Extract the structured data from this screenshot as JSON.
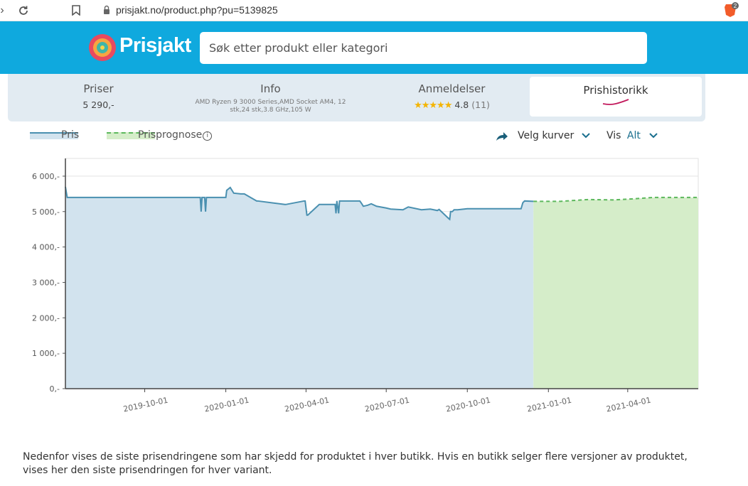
{
  "browser": {
    "url": "prisjakt.no/product.php?pu=5139825",
    "extension_badge": "2"
  },
  "header": {
    "logo_text": "Prisjakt",
    "search_placeholder": "Søk etter produkt eller kategori"
  },
  "tabs": [
    {
      "title": "Priser",
      "value": "5 290,-"
    },
    {
      "title": "Info",
      "value": "AMD Ryzen 9 3000 Series,AMD Socket AM4, 12 stk,24 stk,3.8 GHz,105 W"
    },
    {
      "title": "Anmeldelser",
      "stars": "★★★★★",
      "rating": "4.8",
      "count": "(11)"
    },
    {
      "title": "Prishistorikk"
    }
  ],
  "legend": {
    "pris": "Pris",
    "prognose": "Prisprognose",
    "velg_kurver": "Velg kurver",
    "vis_label": "Vis",
    "vis_value": "Alt"
  },
  "colors": {
    "header": "#0fa9de",
    "price_line": "#4a90b0",
    "price_fill": "#d2e3ee",
    "forecast_line": "#5cb85c",
    "forecast_fill": "#d5edc9"
  },
  "chart_data": {
    "type": "line",
    "x_tick_labels": [
      "2019-10-01",
      "2020-01-01",
      "2020-04-01",
      "2020-07-01",
      "2020-10-01",
      "2021-01-01",
      "2021-04-01"
    ],
    "y_tick_labels": [
      "0,-",
      "1 000,-",
      "2 000,-",
      "3 000,-",
      "4 000,-",
      "5 000,-",
      "6 000,-"
    ],
    "ylim": [
      0,
      6500
    ],
    "series": [
      {
        "name": "Pris",
        "x": [
          "2019-07-03",
          "2019-07-05",
          "2019-07-06",
          "2019-12-03",
          "2019-12-04",
          "2019-12-05",
          "2019-12-08",
          "2019-12-09",
          "2019-12-10",
          "2020-01-01",
          "2020-01-02",
          "2020-01-06",
          "2020-01-10",
          "2020-01-18",
          "2020-01-22",
          "2020-02-05",
          "2020-02-06",
          "2020-03-08",
          "2020-03-09",
          "2020-03-30",
          "2020-03-31",
          "2020-04-02",
          "2020-04-03",
          "2020-04-16",
          "2020-04-17",
          "2020-05-04",
          "2020-05-05",
          "2020-05-06",
          "2020-05-08",
          "2020-05-09",
          "2020-05-10",
          "2020-06-01",
          "2020-06-03",
          "2020-06-05",
          "2020-06-10",
          "2020-06-14",
          "2020-06-20",
          "2020-07-01",
          "2020-07-06",
          "2020-07-20",
          "2020-07-26",
          "2020-08-10",
          "2020-08-20",
          "2020-08-28",
          "2020-08-30",
          "2020-09-10",
          "2020-09-11",
          "2020-09-12",
          "2020-09-14",
          "2020-09-16",
          "2020-09-20",
          "2020-10-01",
          "2020-10-20",
          "2020-12-01",
          "2020-12-03",
          "2020-12-05",
          "2020-12-15"
        ],
        "y": [
          5700,
          5400,
          5400,
          5400,
          5000,
          5400,
          5400,
          5000,
          5400,
          5400,
          5600,
          5680,
          5520,
          5500,
          5500,
          5300,
          5300,
          5200,
          5200,
          5300,
          5300,
          4900,
          4900,
          5200,
          5200,
          5200,
          4950,
          5300,
          4950,
          5300,
          5300,
          5300,
          5230,
          5150,
          5180,
          5220,
          5150,
          5100,
          5070,
          5050,
          5130,
          5050,
          5070,
          5030,
          5060,
          4800,
          4780,
          5000,
          5000,
          5050,
          5050,
          5080,
          5080,
          5080,
          5250,
          5300,
          5290
        ]
      },
      {
        "name": "Prisprognose",
        "x": [
          "2020-12-15",
          "2021-01-15",
          "2021-02-15",
          "2021-03-15",
          "2021-04-01",
          "2021-05-01",
          "2021-06-01",
          "2021-06-20"
        ],
        "y": [
          5290,
          5290,
          5340,
          5330,
          5350,
          5400,
          5400,
          5400
        ]
      }
    ]
  },
  "footer": {
    "text": "Nedenfor vises de siste prisendringene som har skjedd for produktet i hver butikk. Hvis en butikk selger flere versjoner av produktet, vises her den siste prisendringen for hver variant."
  }
}
